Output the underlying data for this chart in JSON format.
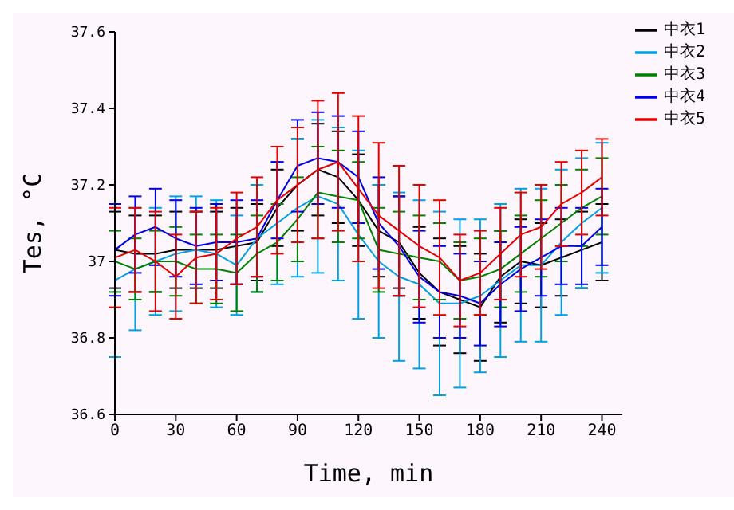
{
  "chart_data": {
    "type": "line",
    "xlabel": "Time, min",
    "ylabel": "Tes, °C",
    "x": [
      0,
      10,
      20,
      30,
      40,
      50,
      60,
      70,
      80,
      90,
      100,
      110,
      120,
      130,
      140,
      150,
      160,
      170,
      180,
      190,
      200,
      210,
      220,
      230,
      240
    ],
    "xlim": [
      0,
      250
    ],
    "xticks": [
      0,
      30,
      60,
      90,
      120,
      150,
      180,
      210,
      240
    ],
    "ylim": [
      36.6,
      37.6
    ],
    "yticks": [
      36.6,
      36.8,
      37,
      37.2,
      37.4,
      37.6
    ],
    "grid": false,
    "legend": "top right",
    "marker": "none",
    "line_style": "solid",
    "series": [
      {
        "name": "中衣1",
        "color": "#000000",
        "values": [
          37.03,
          37.02,
          37.02,
          37.03,
          37.03,
          37.03,
          37.04,
          37.05,
          37.14,
          37.2,
          37.24,
          37.22,
          37.16,
          37.08,
          37.05,
          36.97,
          36.92,
          36.9,
          36.88,
          36.96,
          37.0,
          36.99,
          37.01,
          37.03,
          37.05
        ],
        "errors": [
          0.1,
          0.1,
          0.1,
          0.1,
          0.1,
          0.1,
          0.1,
          0.1,
          0.1,
          0.12,
          0.12,
          0.12,
          0.12,
          0.12,
          0.12,
          0.12,
          0.14,
          0.14,
          0.14,
          0.12,
          0.11,
          0.11,
          0.1,
          0.1,
          0.1
        ]
      },
      {
        "name": "中衣2",
        "color": "#00a0e0",
        "values": [
          36.95,
          36.98,
          37.0,
          37.02,
          37.03,
          37.02,
          36.99,
          37.06,
          37.1,
          37.14,
          37.17,
          37.15,
          37.07,
          37.0,
          36.96,
          36.94,
          36.89,
          36.89,
          36.91,
          36.95,
          36.99,
          36.99,
          37.05,
          37.1,
          37.14
        ],
        "errors": [
          0.2,
          0.16,
          0.14,
          0.15,
          0.14,
          0.14,
          0.13,
          0.14,
          0.16,
          0.18,
          0.2,
          0.2,
          0.22,
          0.2,
          0.22,
          0.22,
          0.24,
          0.22,
          0.2,
          0.2,
          0.2,
          0.2,
          0.19,
          0.17,
          0.17
        ]
      },
      {
        "name": "中衣3",
        "color": "#008000",
        "values": [
          37.0,
          36.98,
          37.0,
          37.0,
          36.98,
          36.98,
          36.97,
          37.02,
          37.05,
          37.11,
          37.18,
          37.17,
          37.16,
          37.03,
          37.02,
          37.01,
          37.0,
          36.95,
          36.96,
          36.98,
          37.02,
          37.06,
          37.1,
          37.14,
          37.17
        ],
        "errors": [
          0.08,
          0.08,
          0.08,
          0.09,
          0.09,
          0.09,
          0.1,
          0.1,
          0.1,
          0.11,
          0.12,
          0.12,
          0.1,
          0.11,
          0.11,
          0.11,
          0.1,
          0.1,
          0.1,
          0.1,
          0.1,
          0.1,
          0.1,
          0.1,
          0.1
        ]
      },
      {
        "name": "中衣4",
        "color": "#0000e0",
        "values": [
          37.03,
          37.07,
          37.09,
          37.06,
          37.04,
          37.05,
          37.05,
          37.06,
          37.16,
          37.25,
          37.27,
          37.26,
          37.22,
          37.1,
          37.04,
          36.96,
          36.92,
          36.91,
          36.89,
          36.94,
          36.98,
          37.01,
          37.04,
          37.04,
          37.09
        ],
        "errors": [
          0.12,
          0.1,
          0.1,
          0.1,
          0.1,
          0.1,
          0.11,
          0.1,
          0.1,
          0.12,
          0.12,
          0.12,
          0.12,
          0.12,
          0.13,
          0.12,
          0.12,
          0.11,
          0.11,
          0.11,
          0.11,
          0.1,
          0.1,
          0.1,
          0.1
        ]
      },
      {
        "name": "中衣5",
        "color": "#e00000",
        "values": [
          37.01,
          37.03,
          37.0,
          36.96,
          37.01,
          37.02,
          37.06,
          37.09,
          37.16,
          37.2,
          37.24,
          37.26,
          37.19,
          37.12,
          37.08,
          37.04,
          37.01,
          36.95,
          36.97,
          37.02,
          37.07,
          37.09,
          37.15,
          37.18,
          37.22
        ],
        "errors": [
          0.13,
          0.11,
          0.13,
          0.11,
          0.12,
          0.12,
          0.12,
          0.13,
          0.14,
          0.15,
          0.18,
          0.18,
          0.19,
          0.19,
          0.17,
          0.16,
          0.15,
          0.12,
          0.11,
          0.12,
          0.11,
          0.11,
          0.11,
          0.11,
          0.1
        ]
      }
    ]
  }
}
